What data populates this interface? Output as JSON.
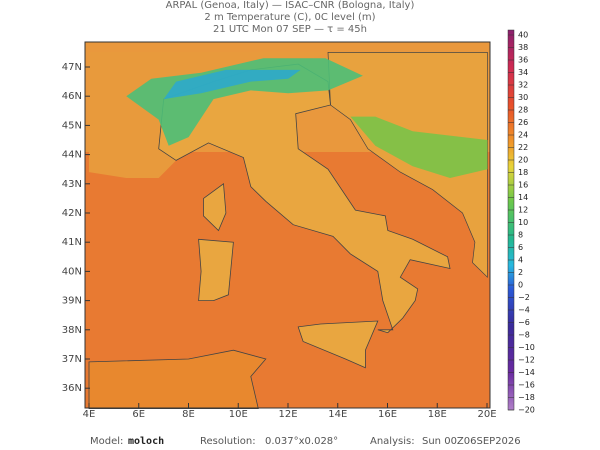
{
  "header": {
    "lines": [
      "ARPAL (Genoa, Italy)  —  ISAC–CNR (Bologna, Italy)",
      "2 m Temperature (C), 0C level (m)",
      "21 UTC Mon 07 SEP  —  τ = 45h"
    ]
  },
  "map": {
    "lat_labels": [
      "47N",
      "46N",
      "45N",
      "44N",
      "43N",
      "42N",
      "41N",
      "40N",
      "39N",
      "38N",
      "37N",
      "36N"
    ],
    "lon_labels": [
      "4E",
      "6E",
      "8E",
      "10E",
      "12E",
      "14E",
      "16E",
      "18E",
      "20E"
    ]
  },
  "colorbar": {
    "labels": [
      "40",
      "38",
      "36",
      "34",
      "32",
      "30",
      "28",
      "26",
      "24",
      "22",
      "20",
      "18",
      "16",
      "14",
      "12",
      "10",
      "8",
      "6",
      "4",
      "2",
      "0",
      "−2",
      "−4",
      "−6",
      "−8",
      "−10",
      "−12",
      "−14",
      "−16",
      "−18",
      "−20"
    ]
  },
  "footer": {
    "model_label": "Model:",
    "model": "moloch",
    "resolution_label": "Resolution:",
    "resolution": "0.037°x0.028°",
    "analysis_label": "Analysis:",
    "analysis": "Sun 00Z06SEP2026"
  }
}
